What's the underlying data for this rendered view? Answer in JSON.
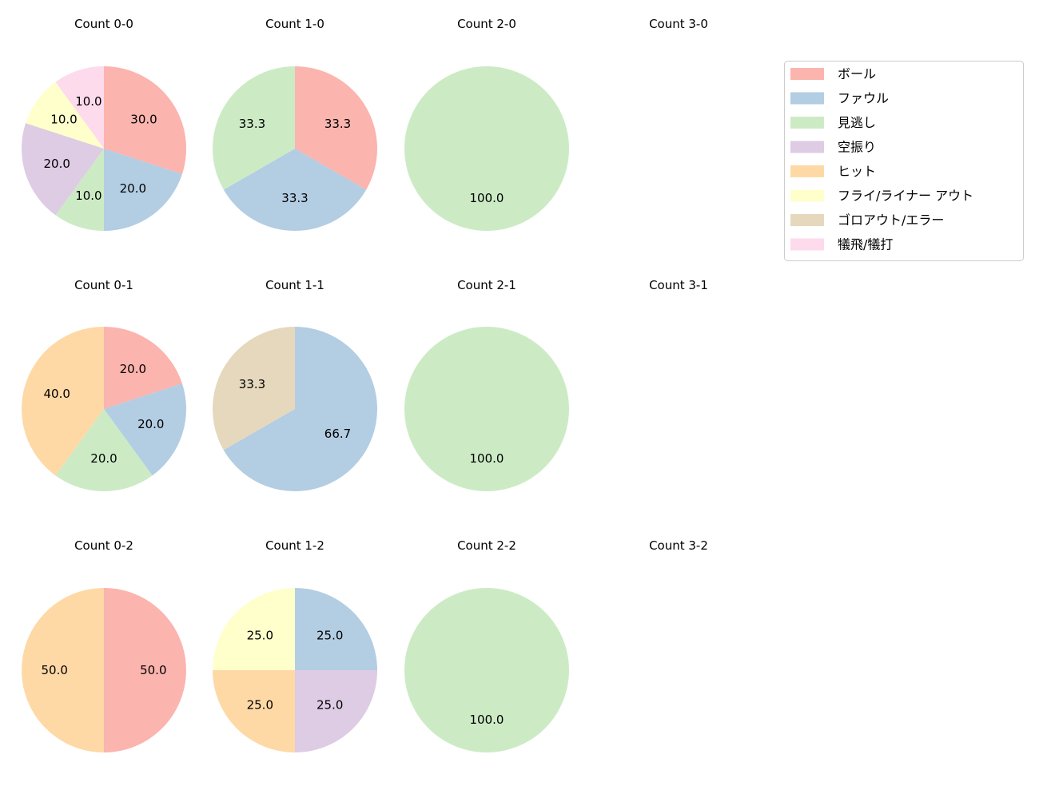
{
  "chart_data": {
    "type": "pie",
    "legend": {
      "placement": "top-right",
      "entries": [
        "ボール",
        "ファウル",
        "見逃し",
        "空振り",
        "ヒット",
        "フライ/ライナー アウト",
        "ゴロアウト/エラー",
        "犠飛/犠打"
      ],
      "colors": [
        "#fbb4ae",
        "#b3cde3",
        "#ccebc5",
        "#decbe4",
        "#fed9a6",
        "#ffffcc",
        "#e5d8bd",
        "#fddaec"
      ]
    },
    "start_angle": "top",
    "direction": "clockwise",
    "pies": [
      {
        "title": "Count 0-0",
        "row": 0,
        "col": 0,
        "slices": [
          {
            "cat": 0,
            "value": 30.0
          },
          {
            "cat": 1,
            "value": 20.0
          },
          {
            "cat": 2,
            "value": 10.0
          },
          {
            "cat": 3,
            "value": 20.0
          },
          {
            "cat": 5,
            "value": 10.0
          },
          {
            "cat": 7,
            "value": 10.0
          }
        ]
      },
      {
        "title": "Count 1-0",
        "row": 0,
        "col": 1,
        "slices": [
          {
            "cat": 0,
            "value": 33.3
          },
          {
            "cat": 1,
            "value": 33.3
          },
          {
            "cat": 2,
            "value": 33.3
          }
        ]
      },
      {
        "title": "Count 2-0",
        "row": 0,
        "col": 2,
        "slices": [
          {
            "cat": 2,
            "value": 100.0
          }
        ]
      },
      {
        "title": "Count 3-0",
        "row": 0,
        "col": 3,
        "slices": []
      },
      {
        "title": "Count 0-1",
        "row": 1,
        "col": 0,
        "slices": [
          {
            "cat": 0,
            "value": 20.0
          },
          {
            "cat": 1,
            "value": 20.0
          },
          {
            "cat": 2,
            "value": 20.0
          },
          {
            "cat": 4,
            "value": 40.0
          }
        ]
      },
      {
        "title": "Count 1-1",
        "row": 1,
        "col": 1,
        "slices": [
          {
            "cat": 1,
            "value": 66.7
          },
          {
            "cat": 6,
            "value": 33.3
          }
        ]
      },
      {
        "title": "Count 2-1",
        "row": 1,
        "col": 2,
        "slices": [
          {
            "cat": 2,
            "value": 100.0
          }
        ]
      },
      {
        "title": "Count 3-1",
        "row": 1,
        "col": 3,
        "slices": []
      },
      {
        "title": "Count 0-2",
        "row": 2,
        "col": 0,
        "slices": [
          {
            "cat": 0,
            "value": 50.0
          },
          {
            "cat": 4,
            "value": 50.0
          }
        ]
      },
      {
        "title": "Count 1-2",
        "row": 2,
        "col": 1,
        "slices": [
          {
            "cat": 1,
            "value": 25.0
          },
          {
            "cat": 3,
            "value": 25.0
          },
          {
            "cat": 4,
            "value": 25.0
          },
          {
            "cat": 5,
            "value": 25.0
          }
        ]
      },
      {
        "title": "Count 2-2",
        "row": 2,
        "col": 2,
        "slices": [
          {
            "cat": 2,
            "value": 100.0
          }
        ]
      },
      {
        "title": "Count 3-2",
        "row": 2,
        "col": 3,
        "slices": []
      }
    ]
  }
}
